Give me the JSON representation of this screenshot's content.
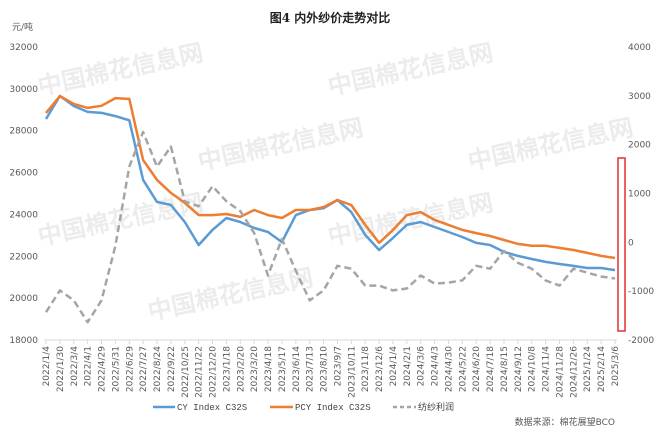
{
  "chart_data": {
    "type": "line",
    "title": "图4 内外纱价走势对比",
    "ylabel": "元/吨",
    "source": "数据来源：棉花展望BCO",
    "watermark": "中国棉花信息网 www.cottonchina.org.cn",
    "ylim": [
      18000,
      32000
    ],
    "yticks": [
      "18000",
      "20000",
      "22000",
      "24000",
      "26000",
      "28000",
      "30000",
      "32000"
    ],
    "y2lim": [
      -2000,
      4000
    ],
    "y2ticks": [
      "-2000",
      "-1000",
      "0",
      "1000",
      "2000",
      "3000",
      "4000"
    ],
    "categories": [
      "2022/1/4",
      "2022/1/30",
      "2022/3/4",
      "2022/4/1",
      "2022/4/29",
      "2022/5/31",
      "2022/6/29",
      "2022/7/27",
      "2022/8/24",
      "2022/9/22",
      "2022/10/25",
      "2022/11/22",
      "2022/12/20",
      "2023/1/18",
      "2023/2/20",
      "2023/3/20",
      "2023/4/18",
      "2023/5/17",
      "2023/6/14",
      "2023/7/13",
      "2023/8/10",
      "2023/9/7",
      "2023/10/11",
      "2023/11/8",
      "2023/12/6",
      "2024/1/4",
      "2024/2/1",
      "2024/3/6",
      "2024/4/3",
      "2024/4/30",
      "2024/5/22",
      "2024/6/20",
      "2024/7/18",
      "2024/8/15",
      "2024/9/12",
      "2024/10/8",
      "2024/11/4",
      "2024/11/28",
      "2024/12/26",
      "2025/1/24",
      "2025/2/14",
      "2025/3/6"
    ],
    "series": [
      {
        "name": "CY Index C32S",
        "axis": "left",
        "color": "#5b9bd5",
        "dash": false,
        "values": [
          28560,
          29660,
          29180,
          28900,
          28850,
          28700,
          28500,
          25650,
          24600,
          24450,
          23640,
          22540,
          23260,
          23830,
          23640,
          23350,
          23160,
          22680,
          23970,
          24210,
          24300,
          24690,
          24110,
          23020,
          22300,
          22880,
          23500,
          23640,
          23400,
          23160,
          22920,
          22640,
          22540,
          22210,
          22020,
          21870,
          21730,
          21630,
          21540,
          21440,
          21440,
          21340
        ]
      },
      {
        "name": "PCY Index C32S",
        "axis": "left",
        "color": "#ed7d31",
        "dash": false,
        "values": [
          28850,
          29660,
          29280,
          29090,
          29190,
          29560,
          29520,
          26600,
          25650,
          25030,
          24550,
          23970,
          23970,
          24020,
          23880,
          24210,
          23970,
          23830,
          24210,
          24210,
          24350,
          24690,
          24450,
          23500,
          22640,
          23260,
          23970,
          24110,
          23740,
          23500,
          23260,
          23110,
          22970,
          22780,
          22590,
          22500,
          22500,
          22400,
          22300,
          22160,
          22020,
          21920
        ]
      },
      {
        "name": "纺纱利润",
        "axis": "right",
        "color": "#a5a5a5",
        "dash": true,
        "values": [
          -1430,
          -985,
          -1190,
          -1635,
          -1190,
          -70,
          1550,
          2260,
          1550,
          1960,
          840,
          740,
          1150,
          840,
          640,
          190,
          -680,
          70,
          -580,
          -1190,
          -985,
          -480,
          -540,
          -885,
          -885,
          -985,
          -945,
          -680,
          -845,
          -825,
          -780,
          -480,
          -540,
          -175,
          -420,
          -540,
          -780,
          -885,
          -540,
          -620,
          -700,
          -740
        ]
      }
    ],
    "highlight_color": "#e03030"
  }
}
